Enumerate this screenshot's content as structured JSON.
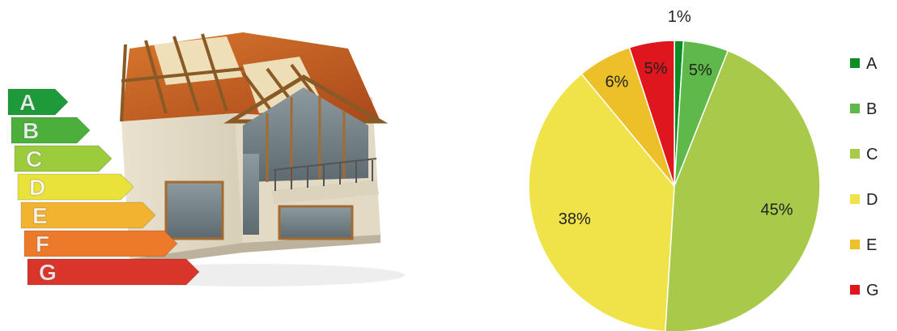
{
  "illustration": {
    "label_letters": [
      "A",
      "B",
      "C",
      "D",
      "E",
      "F",
      "G"
    ],
    "label_colors": [
      "#1e9a3a",
      "#4caf3c",
      "#9ccc3c",
      "#e8e23a",
      "#f2b330",
      "#ec7a2a",
      "#d9352b"
    ]
  },
  "chart_data": {
    "type": "pie",
    "title": "",
    "start_angle": "top, clockwise",
    "categories": [
      "A",
      "B",
      "C",
      "D",
      "E",
      "G"
    ],
    "values": [
      1,
      5,
      45,
      38,
      6,
      5
    ],
    "labels": [
      "1%",
      "5%",
      "45%",
      "38%",
      "6%",
      "5%"
    ],
    "colors": [
      "#0e8c25",
      "#5fb84a",
      "#a8c94a",
      "#f0e34a",
      "#edc02a",
      "#e0161f"
    ],
    "legend": {
      "placement": "right",
      "items": [
        "A",
        "B",
        "C",
        "D",
        "E",
        "G"
      ]
    }
  }
}
